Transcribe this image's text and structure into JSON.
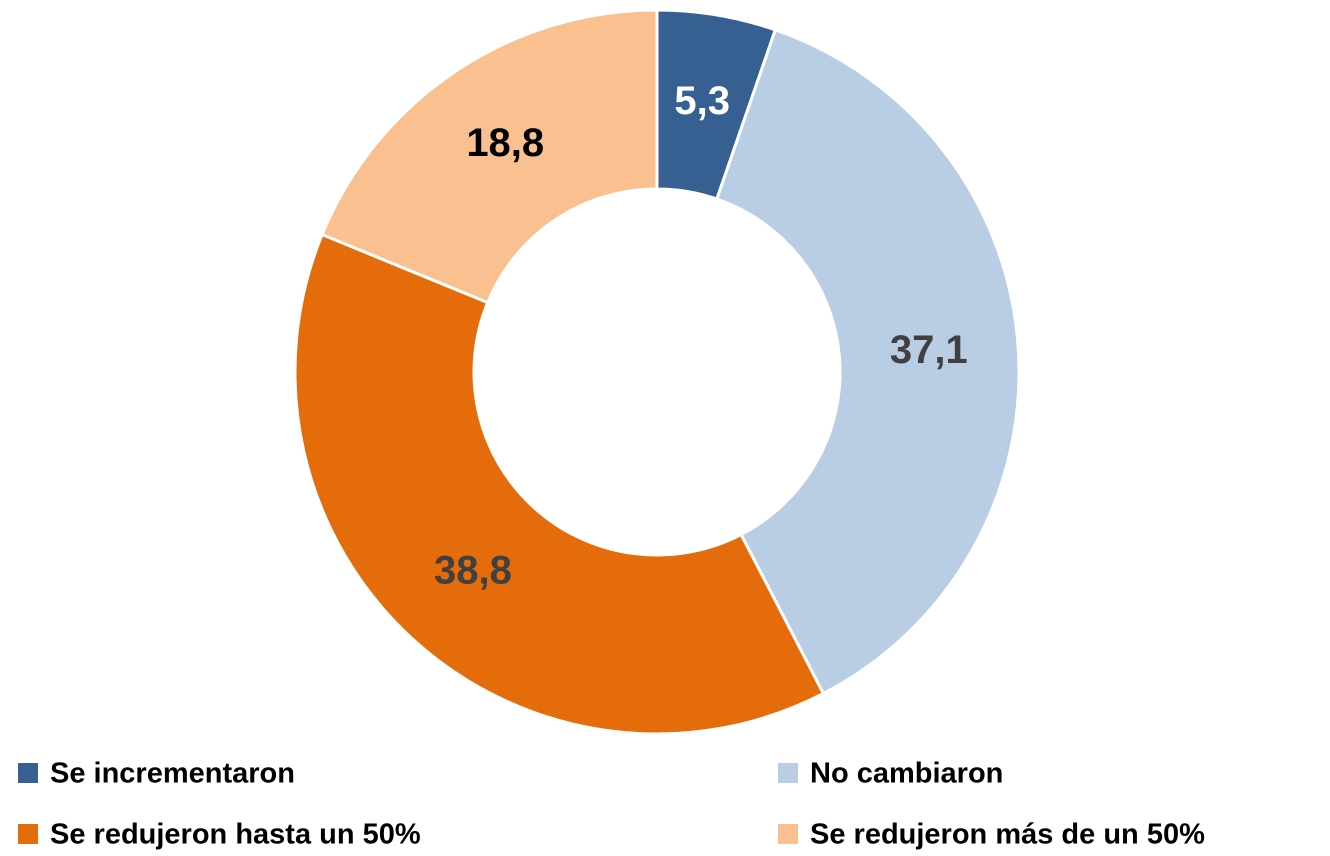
{
  "chart_data": {
    "type": "donut",
    "categories": [
      "Se incrementaron",
      "No cambiaron",
      "Se redujeron hasta un 50%",
      "Se redujeron más de un 50%"
    ],
    "values": [
      5.3,
      37.1,
      38.8,
      18.8
    ],
    "value_labels": [
      "5,3",
      "37,1",
      "38,8",
      "18,8"
    ],
    "colors": [
      "#376092",
      "#b9cde5",
      "#e46c0a",
      "#fac090"
    ],
    "label_colors": [
      "#ffffff",
      "#404040",
      "#404040",
      "#000000"
    ],
    "legend": "bottom"
  }
}
